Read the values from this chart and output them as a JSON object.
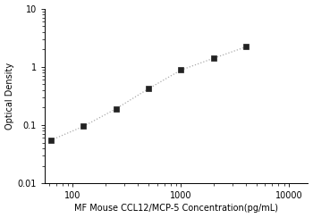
{
  "x_data": [
    62.5,
    125,
    250,
    500,
    1000,
    2000,
    4000
  ],
  "y_data": [
    0.055,
    0.095,
    0.19,
    0.42,
    0.88,
    1.4,
    2.2
  ],
  "xlim": [
    55,
    15000
  ],
  "ylim": [
    0.01,
    10
  ],
  "xlabel": "MF Mouse CCL12/MCP-5 Concentration(pg/mL)",
  "ylabel": "Optical Density",
  "marker": "s",
  "marker_color": "#222222",
  "line_color": "#aaaaaa",
  "marker_size": 4,
  "line_width": 0.9,
  "yticks": [
    0.01,
    0.1,
    1,
    10
  ],
  "ytick_labels": [
    "0.01",
    "0.1",
    "1",
    "10"
  ],
  "xticks": [
    100,
    1000,
    10000
  ],
  "xtick_labels": [
    "100",
    "1000",
    "10000"
  ],
  "xlabel_fontsize": 7,
  "ylabel_fontsize": 7,
  "tick_fontsize": 7,
  "background_color": "#ffffff"
}
